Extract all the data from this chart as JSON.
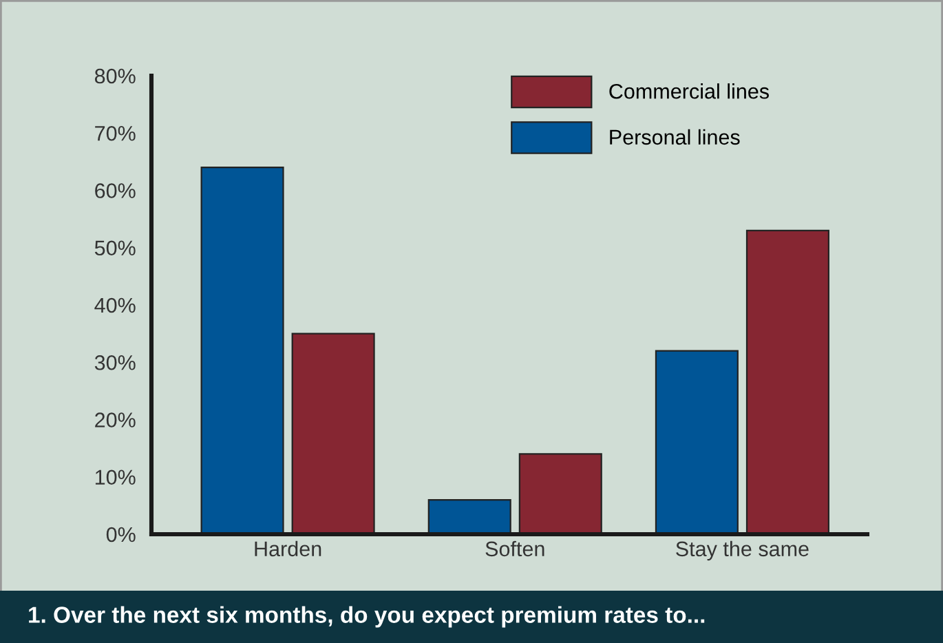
{
  "chart_data": {
    "type": "bar",
    "title": "1. Over the next six months, do you expect premium rates to...",
    "categories": [
      "Harden",
      "Soften",
      "Stay the same"
    ],
    "series": [
      {
        "name": "Personal lines",
        "color": "#005596",
        "values": [
          64,
          6,
          32
        ]
      },
      {
        "name": "Commercial lines",
        "color": "#862632",
        "values": [
          35,
          14,
          53
        ]
      }
    ],
    "ylim": [
      0,
      80
    ],
    "yticks": [
      {
        "value": 0,
        "label": "0%"
      },
      {
        "value": 10,
        "label": "10%"
      },
      {
        "value": 20,
        "label": "20%"
      },
      {
        "value": 30,
        "label": "30%"
      },
      {
        "value": 40,
        "label": "40%"
      },
      {
        "value": 50,
        "label": "50%"
      },
      {
        "value": 60,
        "label": "60%"
      },
      {
        "value": 70,
        "label": "70%"
      },
      {
        "value": 80,
        "label": "80%"
      }
    ],
    "grid": false,
    "legend": "top right"
  }
}
